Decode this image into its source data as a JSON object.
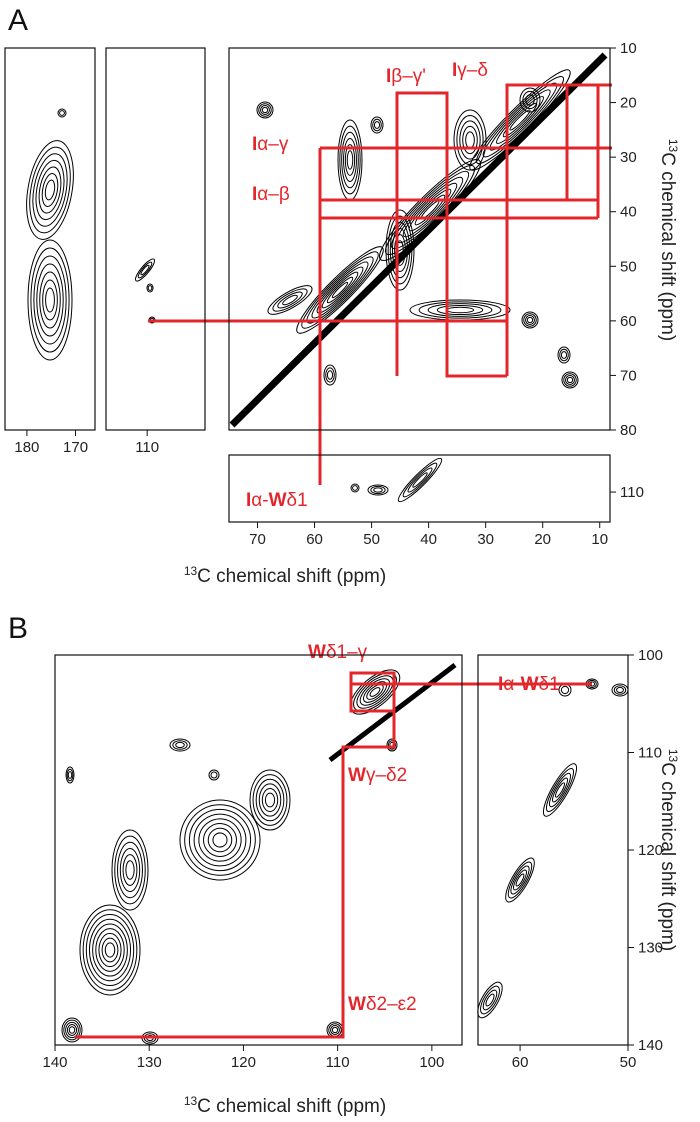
{
  "panels": [
    {
      "label": "A",
      "x_axis_label": {
        "sup": "13",
        "text": "C chemical shift (ppm)"
      },
      "y_axis_label": {
        "sup": "13",
        "text": "C chemical shift (ppm)"
      },
      "plots": [
        {
          "type": "contour",
          "xlim": [
            184.5,
            166
          ],
          "ylim": [
            10,
            80
          ],
          "xticks": [
            180,
            170
          ]
        },
        {
          "type": "contour",
          "xlim": [
            118.4,
            98.2
          ],
          "ylim": [
            10,
            80
          ],
          "xticks": [
            110
          ]
        },
        {
          "type": "contour",
          "xlim": [
            75,
            8.2
          ],
          "ylim": [
            10,
            80
          ],
          "yticks": [
            10,
            20,
            30,
            40,
            50,
            60,
            70,
            80
          ]
        },
        {
          "type": "contour",
          "xlim": [
            75,
            8.2
          ],
          "ylim": [
            103.2,
            115.5
          ],
          "xticks": [
            70,
            60,
            50,
            40,
            30,
            20,
            10
          ],
          "yticks": [
            110
          ]
        }
      ],
      "annotations": [
        {
          "parts": [
            "I",
            "α–γ"
          ]
        },
        {
          "parts": [
            "I",
            "α–β"
          ]
        },
        {
          "parts": [
            "I",
            "β–γ'"
          ]
        },
        {
          "parts": [
            "I",
            "γ–δ"
          ]
        },
        {
          "parts": [
            "I",
            "α-",
            "W",
            "δ1"
          ]
        }
      ]
    },
    {
      "label": "B",
      "x_axis_label": {
        "sup": "13",
        "text": "C chemical shift (ppm)"
      },
      "y_axis_label": {
        "sup": "13",
        "text": "C chemical shift (ppm)"
      },
      "plots": [
        {
          "type": "contour",
          "xlim": [
            140,
            96.8
          ],
          "ylim": [
            100,
            140
          ],
          "xticks": [
            140,
            130,
            120,
            110,
            100
          ]
        },
        {
          "type": "contour",
          "xlim": [
            63.9,
            50
          ],
          "ylim": [
            100,
            140
          ],
          "xticks": [
            60,
            50
          ],
          "yticks": [
            100,
            110,
            120,
            130,
            140
          ]
        }
      ],
      "annotations": [
        {
          "parts": [
            "W",
            "δ1–γ"
          ]
        },
        {
          "parts": [
            "W",
            "γ–δ2"
          ]
        },
        {
          "parts": [
            "W",
            "δ2–ε2"
          ]
        },
        {
          "parts": [
            "I",
            "α-",
            "W",
            "δ1"
          ]
        }
      ]
    }
  ]
}
